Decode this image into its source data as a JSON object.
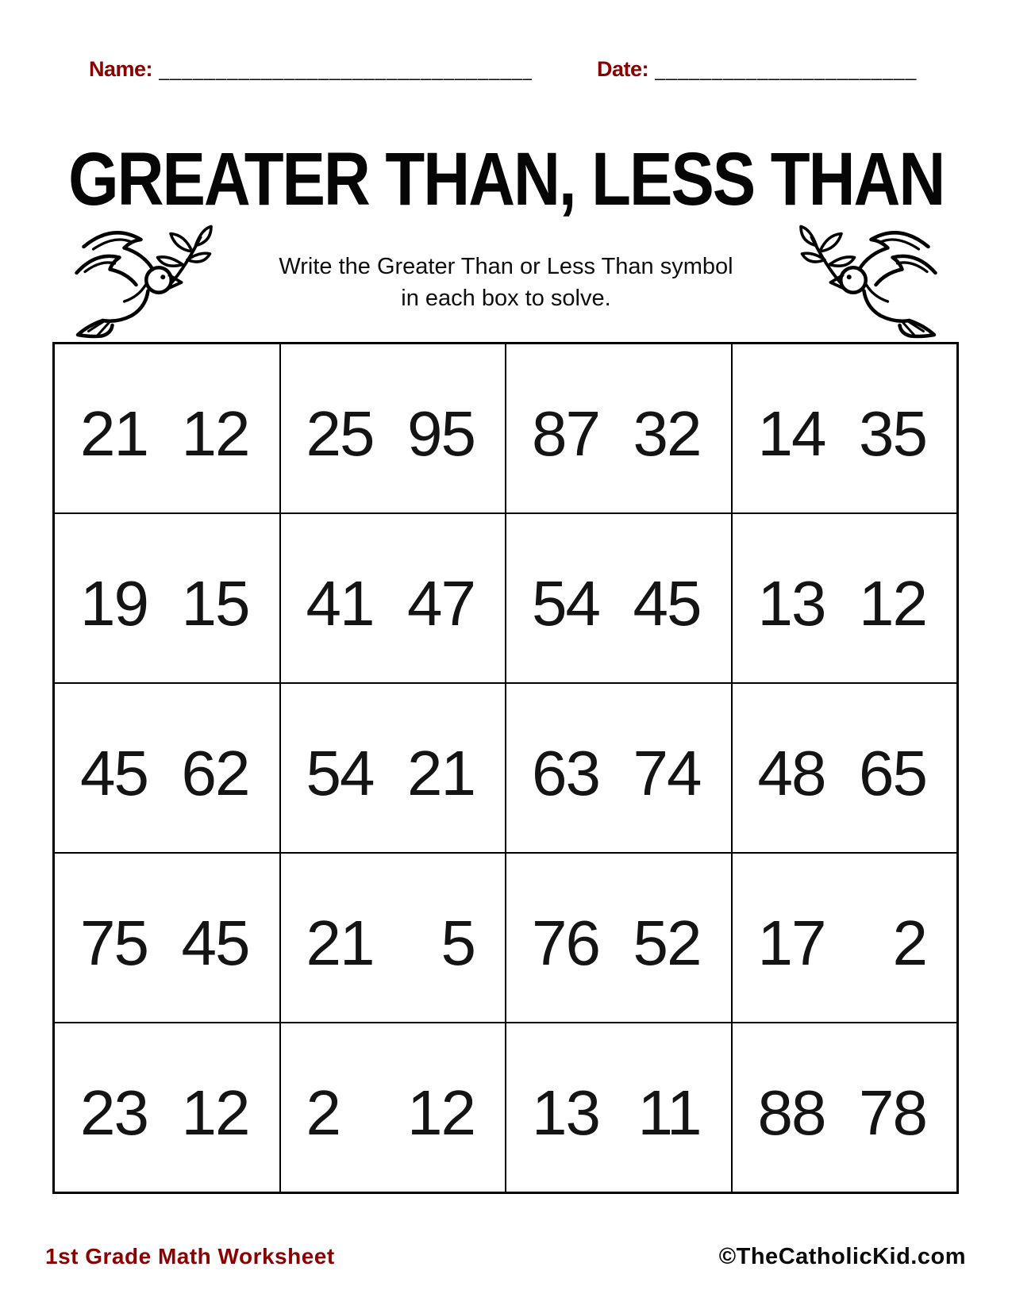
{
  "header": {
    "name_label": "Name:",
    "name_line": "___________________________________",
    "date_label": "Date:",
    "date_line": "________________________"
  },
  "title": "GREATER THAN, LESS THAN",
  "instructions": {
    "line1": "Write the Greater Than or Less Than symbol",
    "line2": "in each box to solve."
  },
  "icons": {
    "left": "dove-with-olive-branch-icon",
    "right": "dove-with-olive-branch-icon-mirrored"
  },
  "grid": {
    "columns": 4,
    "rows": 5,
    "cells": [
      [
        [
          21,
          12
        ],
        [
          25,
          95
        ],
        [
          87,
          32
        ],
        [
          14,
          35
        ]
      ],
      [
        [
          19,
          15
        ],
        [
          41,
          47
        ],
        [
          54,
          45
        ],
        [
          13,
          12
        ]
      ],
      [
        [
          45,
          62
        ],
        [
          54,
          21
        ],
        [
          63,
          74
        ],
        [
          48,
          65
        ]
      ],
      [
        [
          75,
          45
        ],
        [
          21,
          5
        ],
        [
          76,
          52
        ],
        [
          17,
          2
        ]
      ],
      [
        [
          23,
          12
        ],
        [
          2,
          12
        ],
        [
          13,
          11
        ],
        [
          88,
          78
        ]
      ]
    ]
  },
  "footer": {
    "left": "1st Grade Math Worksheet",
    "right": "©TheCatholicKid.com"
  },
  "colors": {
    "accent_red": "#8B0000",
    "ink": "#0c0c0c",
    "grid_line": "#000000",
    "background": "#ffffff"
  }
}
